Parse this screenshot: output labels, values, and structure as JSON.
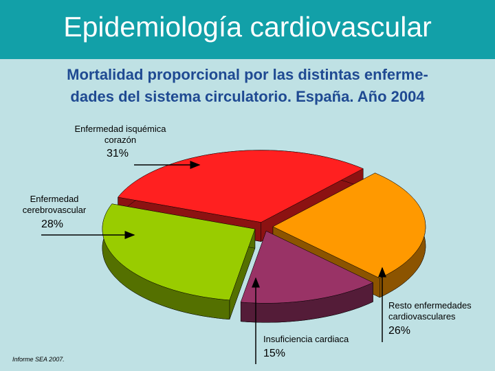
{
  "header": {
    "title": "Epidemiología cardiovascular"
  },
  "subtitle": [
    "Mortalidad proporcional por las distintas enferme-",
    "dades del sistema circulatorio. España. Año 2004"
  ],
  "chart_data": {
    "type": "pie",
    "categories": [
      "Enfermedad isquémica corazón",
      "Resto enfermedades cardiovasculares",
      "Insuficiencia cardiaca",
      "Enfermedad cerebrovascular"
    ],
    "values": [
      31,
      26,
      15,
      28
    ],
    "value_labels": [
      "31%",
      "26%",
      "15%",
      "28%"
    ],
    "colors": [
      "#ff2020",
      "#ff9900",
      "#993366",
      "#99cc00"
    ]
  },
  "source": "Informe SEA 2007."
}
